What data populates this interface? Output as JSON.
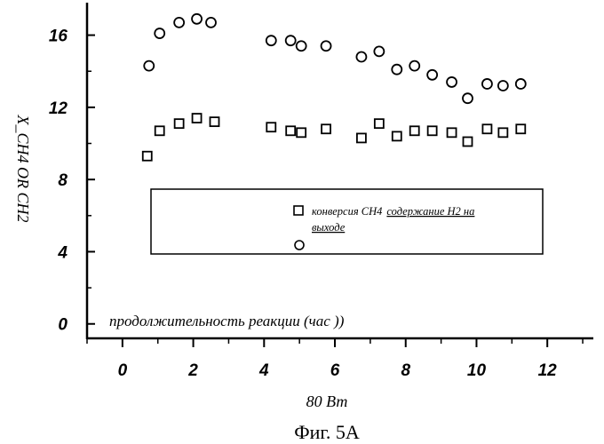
{
  "chart_data": {
    "type": "scatter",
    "title": "",
    "xlabel": "80 Вт",
    "ylabel": "X_CH4 OR CH2",
    "xlim": [
      -1,
      13.3
    ],
    "ylim": [
      -0.8,
      17.8
    ],
    "xticks": [
      0,
      2,
      4,
      6,
      8,
      10,
      12
    ],
    "yticks": [
      0,
      4,
      8,
      12,
      16
    ],
    "annotation": "продолжительность реакции (час ))",
    "caption": "Фиг. 5А",
    "legend": {
      "position": "center",
      "entries": [
        {
          "marker": "square",
          "label": "конверсия CH4",
          "label_extra": "содержание H2 на"
        },
        {
          "marker": "circle",
          "label": "выходе"
        }
      ]
    },
    "series": [
      {
        "marker": "circle",
        "x": [
          0.75,
          1.05,
          1.6,
          2.1,
          2.5,
          4.2,
          4.75,
          5.05,
          5.75,
          6.75,
          7.25,
          7.75,
          8.25,
          8.75,
          9.3,
          9.75,
          10.3,
          10.75,
          11.25
        ],
        "y": [
          14.3,
          16.1,
          16.7,
          16.9,
          16.7,
          15.7,
          15.7,
          15.4,
          15.4,
          14.8,
          15.1,
          14.1,
          14.3,
          13.8,
          13.4,
          12.5,
          13.3,
          13.2,
          13.3
        ]
      },
      {
        "marker": "square",
        "x": [
          0.7,
          1.05,
          1.6,
          2.1,
          2.6,
          4.2,
          4.75,
          5.05,
          5.75,
          6.75,
          7.25,
          7.75,
          8.25,
          8.75,
          9.3,
          9.75,
          10.3,
          10.75,
          11.25
        ],
        "y": [
          9.3,
          10.7,
          11.1,
          11.4,
          11.2,
          10.9,
          10.7,
          10.6,
          10.8,
          10.3,
          11.1,
          10.4,
          10.7,
          10.7,
          10.6,
          10.1,
          10.8,
          10.6,
          10.8
        ]
      }
    ]
  }
}
